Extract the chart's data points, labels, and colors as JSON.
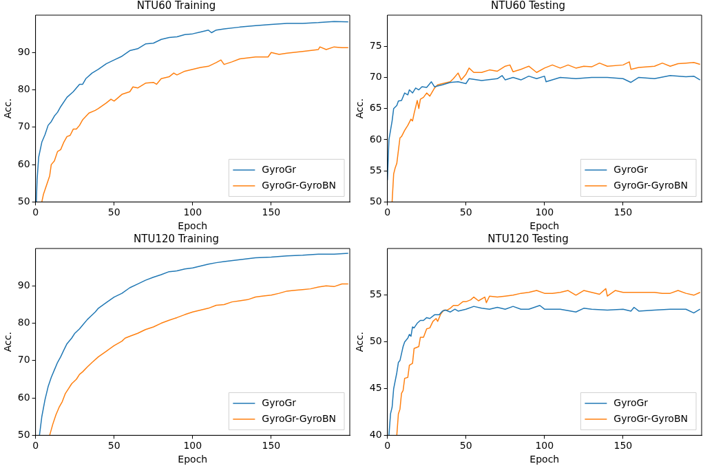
{
  "chart_data": [
    {
      "type": "line",
      "title": "NTU60 Training",
      "xlabel": "Epoch",
      "ylabel": "Acc.",
      "xlim": [
        0,
        200
      ],
      "xticks": [
        0,
        50,
        100,
        150
      ],
      "ylim": [
        50,
        100
      ],
      "yticks": [
        50,
        60,
        70,
        80,
        90
      ],
      "legend": "bottom right",
      "series": [
        {
          "name": "GyroGr",
          "color": "#1f77b4",
          "x": [
            0.5,
            1,
            2,
            4,
            6,
            8,
            10,
            12,
            14,
            16,
            20,
            24,
            28,
            30,
            32,
            36,
            40,
            45,
            50,
            55,
            60,
            65,
            70,
            75,
            80,
            85,
            90,
            95,
            100,
            105,
            110,
            112,
            115,
            120,
            130,
            140,
            150,
            160,
            170,
            180,
            190,
            199
          ],
          "values": [
            50,
            56,
            62,
            66,
            68,
            70.5,
            71.5,
            73,
            74,
            75.5,
            78,
            79.5,
            81.5,
            81.5,
            83,
            84.5,
            85.5,
            87,
            88,
            89,
            90.5,
            91,
            92.3,
            92.5,
            93.5,
            94,
            94.2,
            94.8,
            95,
            95.5,
            96,
            95.3,
            96,
            96.3,
            96.8,
            97.2,
            97.5,
            97.8,
            97.8,
            98,
            98.3,
            98.2
          ]
        },
        {
          "name": "GyroGr-GyroBN",
          "color": "#ff7f0e",
          "x": [
            4,
            5,
            7,
            9,
            10,
            12,
            14,
            16,
            18,
            20,
            22,
            24,
            26,
            28,
            30,
            34,
            38,
            40,
            45,
            48,
            50,
            55,
            60,
            62,
            65,
            70,
            75,
            77,
            80,
            85,
            88,
            90,
            95,
            100,
            105,
            110,
            115,
            118,
            120,
            125,
            130,
            140,
            148,
            150,
            155,
            160,
            170,
            180,
            181,
            185,
            190,
            195,
            199
          ],
          "values": [
            50,
            52,
            54.5,
            57,
            60,
            61,
            63.5,
            64,
            66,
            67.5,
            67.8,
            69.5,
            69.5,
            70.5,
            72,
            73.8,
            74.5,
            75,
            76.5,
            77.5,
            77,
            78.8,
            79.5,
            80.8,
            80.5,
            81.8,
            82,
            81.5,
            83,
            83.5,
            84.5,
            84,
            85,
            85.5,
            86,
            86.3,
            87.3,
            88,
            86.8,
            87.5,
            88.3,
            88.8,
            88.8,
            90,
            89.5,
            89.8,
            90.3,
            90.8,
            91.5,
            90.8,
            91.5,
            91.3,
            91.3
          ]
        }
      ]
    },
    {
      "type": "line",
      "title": "NTU60 Testing",
      "xlabel": "Epoch",
      "ylabel": "Acc.",
      "xlim": [
        0,
        200
      ],
      "xticks": [
        0,
        50,
        100,
        150
      ],
      "ylim": [
        50,
        80
      ],
      "yticks": [
        50,
        55,
        60,
        65,
        70,
        75
      ],
      "legend": "bottom right",
      "series": [
        {
          "name": "GyroGr",
          "color": "#1f77b4",
          "x": [
            0,
            1,
            2,
            3,
            4,
            6,
            7,
            9,
            11,
            13,
            14,
            16,
            18,
            20,
            22,
            25,
            28,
            30,
            35,
            40,
            45,
            50,
            52,
            60,
            70,
            73,
            75,
            80,
            85,
            90,
            95,
            100,
            101,
            110,
            120,
            130,
            140,
            150,
            155,
            160,
            170,
            180,
            190,
            195,
            199
          ],
          "values": [
            53.5,
            60,
            61.5,
            63,
            65,
            65.5,
            66.2,
            66.3,
            67.5,
            67.2,
            68,
            67.5,
            68.3,
            68,
            68.5,
            68.4,
            69.3,
            68.5,
            68.8,
            69.2,
            69.3,
            69,
            69.8,
            69.5,
            69.8,
            70.3,
            69.6,
            70,
            69.6,
            70.2,
            69.8,
            70.2,
            69.3,
            70,
            69.8,
            70,
            70,
            69.8,
            69.2,
            70,
            69.8,
            70.3,
            70.1,
            70.2,
            69.6
          ]
        },
        {
          "name": "GyroGr-GyroBN",
          "color": "#ff7f0e",
          "x": [
            3,
            4,
            5,
            6,
            8,
            9,
            11,
            13,
            15,
            16,
            17,
            19,
            20,
            21,
            23,
            25,
            27,
            30,
            32,
            35,
            40,
            42,
            45,
            47,
            50,
            52,
            55,
            60,
            65,
            70,
            75,
            78,
            80,
            85,
            90,
            95,
            100,
            105,
            110,
            115,
            120,
            125,
            130,
            135,
            140,
            150,
            154,
            155,
            160,
            170,
            175,
            180,
            185,
            190,
            195,
            199
          ],
          "values": [
            50,
            54.5,
            55.5,
            56.2,
            60.3,
            60.5,
            61.5,
            62.3,
            63.3,
            63,
            64.2,
            66.3,
            65,
            66.5,
            66.8,
            67.5,
            67,
            68.3,
            68.8,
            69,
            69.3,
            69.8,
            70.7,
            69.6,
            70.5,
            71.5,
            70.8,
            70.8,
            71.2,
            71,
            71.8,
            72,
            70.9,
            71.3,
            71.8,
            70.8,
            71.5,
            72,
            71.5,
            72,
            71.5,
            71.8,
            71.7,
            72.3,
            71.8,
            72,
            72.5,
            71.3,
            71.6,
            71.8,
            72.3,
            71.8,
            72.2,
            72.3,
            72.4,
            72.1
          ]
        }
      ]
    },
    {
      "type": "line",
      "title": "NTU120 Training",
      "xlabel": "Epoch",
      "ylabel": "Acc.",
      "xlim": [
        0,
        200
      ],
      "xticks": [
        0,
        50,
        100,
        150
      ],
      "ylim": [
        50,
        100
      ],
      "yticks": [
        50,
        60,
        70,
        80,
        90
      ],
      "legend": "bottom right",
      "series": [
        {
          "name": "GyroGr",
          "color": "#1f77b4",
          "x": [
            2.5,
            4,
            6,
            8,
            10,
            12,
            14,
            16,
            18,
            20,
            23,
            25,
            28,
            30,
            33,
            35,
            38,
            40,
            45,
            50,
            55,
            60,
            65,
            70,
            75,
            80,
            85,
            90,
            95,
            100,
            105,
            110,
            115,
            120,
            130,
            140,
            150,
            160,
            170,
            180,
            190,
            199
          ],
          "values": [
            50,
            55,
            59.5,
            63,
            65.5,
            67.5,
            69.5,
            71,
            72.8,
            74.5,
            76,
            77.3,
            78.5,
            79.5,
            81,
            81.8,
            83,
            84,
            85.5,
            87,
            88,
            89.5,
            90.5,
            91.5,
            92.3,
            93,
            93.8,
            94,
            94.5,
            94.8,
            95.3,
            95.8,
            96.2,
            96.5,
            97,
            97.5,
            97.7,
            98,
            98.2,
            98.5,
            98.5,
            98.7
          ]
        },
        {
          "name": "GyroGr-GyroBN",
          "color": "#ff7f0e",
          "x": [
            9,
            11,
            13,
            15,
            17,
            19,
            21,
            23,
            26,
            28,
            30,
            33,
            36,
            40,
            45,
            50,
            55,
            57,
            60,
            65,
            70,
            75,
            80,
            85,
            90,
            95,
            100,
            105,
            110,
            115,
            120,
            125,
            130,
            135,
            140,
            145,
            150,
            155,
            160,
            165,
            170,
            175,
            180,
            185,
            190,
            195,
            199
          ],
          "values": [
            50,
            53,
            55.5,
            57.5,
            59,
            61.2,
            62.5,
            63.8,
            65,
            66.3,
            67,
            68.3,
            69.5,
            71,
            72.5,
            74,
            75.2,
            76,
            76.5,
            77.3,
            78.3,
            79,
            80,
            80.8,
            81.5,
            82.3,
            83,
            83.5,
            84,
            84.8,
            85,
            85.7,
            86,
            86.3,
            87,
            87.3,
            87.5,
            88,
            88.6,
            88.8,
            89,
            89.2,
            89.7,
            90,
            89.8,
            90.5,
            90.5
          ]
        }
      ]
    },
    {
      "type": "line",
      "title": "NTU120 Testing",
      "xlabel": "Epoch",
      "ylabel": "Acc.",
      "xlim": [
        0,
        200
      ],
      "xticks": [
        0,
        50,
        100,
        150
      ],
      "ylim": [
        40,
        60
      ],
      "yticks": [
        40,
        45,
        50,
        55
      ],
      "legend": "bottom right",
      "series": [
        {
          "name": "GyroGr",
          "color": "#1f77b4",
          "x": [
            1,
            2,
            3,
            4,
            6,
            7,
            8,
            10,
            11,
            13,
            14,
            15,
            16,
            17,
            19,
            21,
            23,
            25,
            27,
            30,
            33,
            35,
            37,
            40,
            43,
            45,
            50,
            55,
            60,
            65,
            70,
            75,
            80,
            85,
            90,
            97,
            100,
            110,
            120,
            125,
            130,
            140,
            150,
            155,
            157,
            160,
            170,
            180,
            190,
            195,
            199
          ],
          "values": [
            40,
            42.3,
            43,
            45,
            46.7,
            47.8,
            48,
            49.5,
            50,
            50.4,
            50.8,
            50.6,
            51.6,
            51.5,
            52,
            52.3,
            52.3,
            52.6,
            52.5,
            52.9,
            52.9,
            53.3,
            53.4,
            53.2,
            53.5,
            53.3,
            53.5,
            53.8,
            53.6,
            53.5,
            53.7,
            53.5,
            53.8,
            53.5,
            53.5,
            53.9,
            53.5,
            53.5,
            53.2,
            53.6,
            53.5,
            53.4,
            53.5,
            53.3,
            53.7,
            53.3,
            53.4,
            53.5,
            53.5,
            53.1,
            53.5
          ]
        },
        {
          "name": "GyroGr-GyroBN",
          "color": "#ff7f0e",
          "x": [
            6,
            7,
            8,
            9,
            10,
            11,
            13,
            14,
            16,
            17,
            20,
            21,
            23,
            25,
            27,
            29,
            31,
            32,
            34,
            36,
            38,
            40,
            42,
            45,
            48,
            50,
            53,
            55,
            58,
            62,
            63,
            65,
            70,
            75,
            80,
            85,
            90,
            95,
            100,
            105,
            110,
            115,
            120,
            125,
            130,
            135,
            139,
            140,
            145,
            150,
            155,
            160,
            170,
            175,
            180,
            185,
            190,
            195,
            199
          ],
          "values": [
            40,
            42.3,
            42.8,
            44.5,
            44.8,
            46.1,
            46.2,
            47.5,
            47.7,
            49.3,
            49.5,
            50.5,
            50.5,
            51.4,
            51.5,
            52.2,
            52.5,
            52.2,
            53,
            53.4,
            53.4,
            53.6,
            53.9,
            53.9,
            54.3,
            54.3,
            54.5,
            54.8,
            54.4,
            54.8,
            54.2,
            54.9,
            54.8,
            54.9,
            55,
            55.2,
            55.3,
            55.5,
            55.2,
            55.2,
            55.3,
            55.5,
            55,
            55.5,
            55.3,
            55.1,
            55.7,
            54.9,
            55.5,
            55.3,
            55.3,
            55.3,
            55.3,
            55.2,
            55.2,
            55.5,
            55.2,
            55,
            55.3
          ]
        }
      ]
    }
  ]
}
